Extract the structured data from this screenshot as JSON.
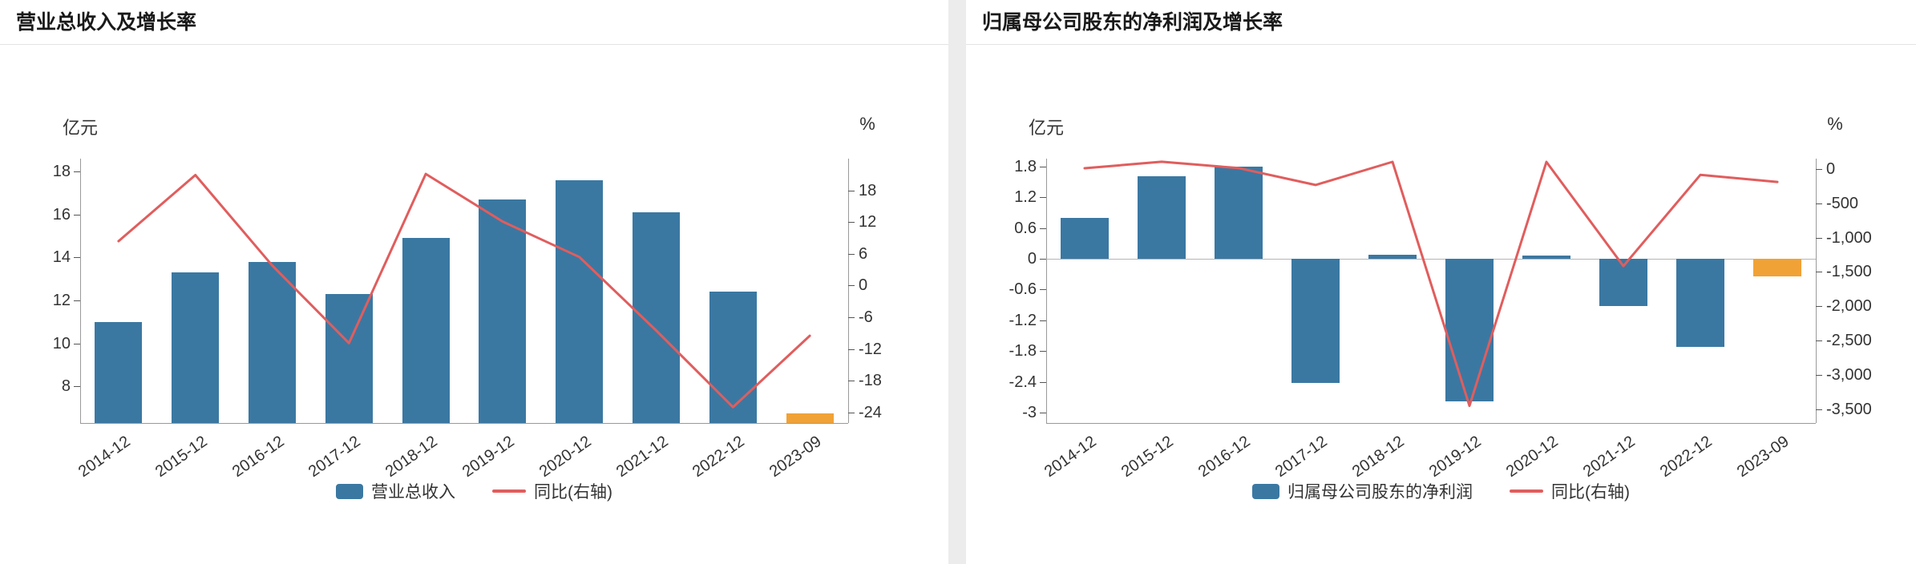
{
  "page": {
    "background": "#ececec",
    "panel_background": "#ffffff"
  },
  "colors": {
    "bar": "#3a78a2",
    "bar_highlight": "#f1a236",
    "line": "#e15d5d",
    "axis_text": "#333333",
    "axis_line": "#9a9a9a",
    "title": "#1a1a1a",
    "divider": "#e3e3e3"
  },
  "chart_data": [
    {
      "type": "bar+line",
      "title": "营业总收入及增长率",
      "left_axis_label": "亿元",
      "right_axis_label": "%",
      "categories": [
        "2014-12",
        "2015-12",
        "2016-12",
        "2017-12",
        "2018-12",
        "2019-12",
        "2020-12",
        "2021-12",
        "2022-12",
        "2023-09"
      ],
      "series": [
        {
          "name": "营业总收入",
          "type": "bar",
          "axis": "left",
          "unit": "亿元",
          "highlight_last": true,
          "values": [
            11.0,
            13.3,
            13.8,
            12.3,
            14.9,
            16.7,
            17.6,
            16.1,
            12.4,
            6.75
          ]
        },
        {
          "name": "同比(右轴)",
          "type": "line",
          "axis": "right",
          "unit": "%",
          "values": [
            8.4,
            20.9,
            3.8,
            -10.9,
            21.1,
            12.1,
            5.4,
            -8.5,
            -23.0,
            -9.5
          ]
        }
      ],
      "left_axis": {
        "min": 6.3,
        "max": 18.6,
        "tick_values": [
          18,
          16,
          14,
          12,
          10,
          8
        ],
        "tick_labels": [
          "18",
          "16",
          "14",
          "12",
          "10",
          "8"
        ]
      },
      "right_axis": {
        "min": -26,
        "max": 24,
        "tick_values": [
          18,
          12,
          6,
          0,
          -6,
          -12,
          -18,
          -24
        ],
        "tick_labels": [
          "18",
          "12",
          "6",
          "0",
          "-6",
          "-12",
          "-18",
          "-24"
        ]
      },
      "legend": [
        {
          "swatch": "bar",
          "label": "营业总收入"
        },
        {
          "swatch": "line",
          "label": "同比(右轴)"
        }
      ]
    },
    {
      "type": "bar+line",
      "title": "归属母公司股东的净利润及增长率",
      "left_axis_label": "亿元",
      "right_axis_label": "%",
      "categories": [
        "2014-12",
        "2015-12",
        "2016-12",
        "2017-12",
        "2018-12",
        "2019-12",
        "2020-12",
        "2021-12",
        "2022-12",
        "2023-09"
      ],
      "series": [
        {
          "name": "归属母公司股东的净利润",
          "type": "bar",
          "axis": "left",
          "unit": "亿元",
          "highlight_last": true,
          "values": [
            0.79,
            1.61,
            1.8,
            -2.42,
            0.08,
            -2.78,
            0.07,
            -0.92,
            -1.72,
            -0.35
          ]
        },
        {
          "name": "同比(右轴)",
          "type": "line",
          "axis": "right",
          "unit": "%",
          "values": [
            10,
            104,
            12,
            -234,
            103,
            -3450,
            102,
            -1414,
            -87,
            -190
          ]
        }
      ],
      "left_axis": {
        "min": -3.2,
        "max": 1.95,
        "tick_values": [
          1.8,
          1.2,
          0.6,
          0,
          -0.6,
          -1.2,
          -1.8,
          -2.4,
          -3
        ],
        "tick_labels": [
          "1.8",
          "1.2",
          "0.6",
          "0",
          "-0.6",
          "-1.2",
          "-1.8",
          "-2.4",
          "-3"
        ]
      },
      "right_axis": {
        "min": -3700,
        "max": 150,
        "tick_values": [
          0,
          -500,
          -1000,
          -1500,
          -2000,
          -2500,
          -3000,
          -3500
        ],
        "tick_labels": [
          "0",
          "-500",
          "-1,000",
          "-1,500",
          "-2,000",
          "-2,500",
          "-3,000",
          "-3,500"
        ]
      },
      "legend": [
        {
          "swatch": "bar",
          "label": "归属母公司股东的净利润"
        },
        {
          "swatch": "line",
          "label": "同比(右轴)"
        }
      ]
    }
  ]
}
